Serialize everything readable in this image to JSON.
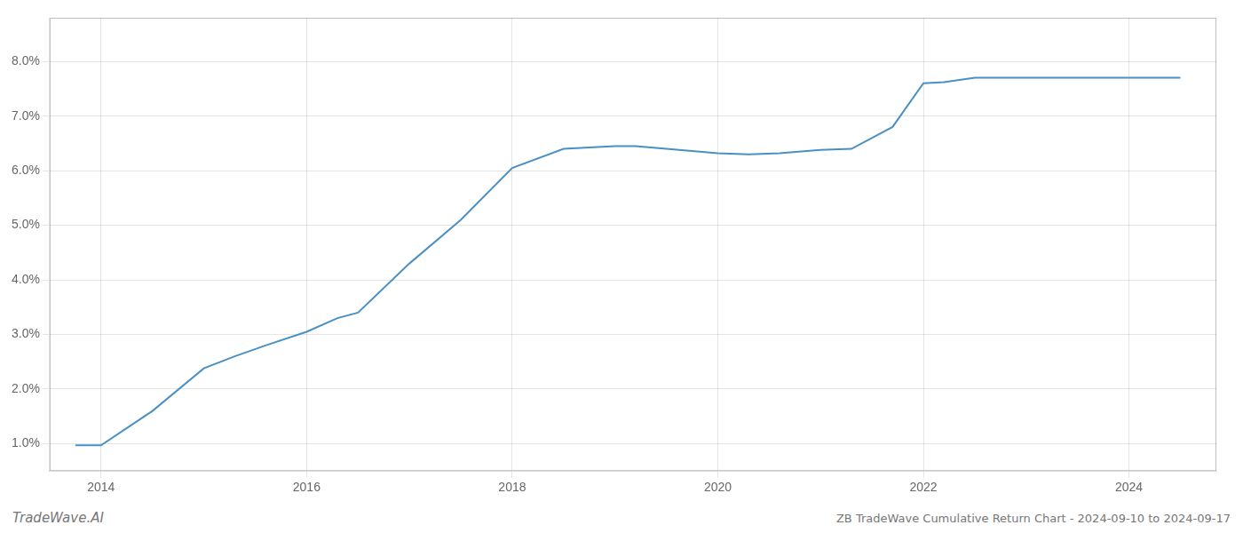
{
  "chart_data": {
    "type": "line",
    "x": [
      2013.75,
      2014.0,
      2014.5,
      2015.0,
      2015.3,
      2015.6,
      2016.0,
      2016.3,
      2016.5,
      2017.0,
      2017.5,
      2018.0,
      2018.5,
      2019.0,
      2019.2,
      2019.5,
      2019.8,
      2020.0,
      2020.3,
      2020.6,
      2021.0,
      2021.3,
      2021.7,
      2022.0,
      2022.2,
      2022.5,
      2023.0,
      2023.5,
      2024.0,
      2024.5
    ],
    "values": [
      0.0097,
      0.0097,
      0.016,
      0.0238,
      0.026,
      0.028,
      0.0305,
      0.033,
      0.034,
      0.043,
      0.051,
      0.0605,
      0.064,
      0.0645,
      0.0645,
      0.064,
      0.0635,
      0.0632,
      0.063,
      0.0632,
      0.0638,
      0.064,
      0.068,
      0.076,
      0.0762,
      0.077,
      0.077,
      0.077,
      0.077,
      0.077
    ],
    "color": "#4a90c4",
    "xlim": [
      2013.5,
      2024.85
    ],
    "ylim": [
      0.005,
      0.088
    ],
    "xticks": [
      2014,
      2016,
      2018,
      2020,
      2022,
      2024
    ],
    "yticks": [
      {
        "value": 0.01,
        "label": "1.0%"
      },
      {
        "value": 0.02,
        "label": "2.0%"
      },
      {
        "value": 0.03,
        "label": "3.0%"
      },
      {
        "value": 0.04,
        "label": "4.0%"
      },
      {
        "value": 0.05,
        "label": "5.0%"
      },
      {
        "value": 0.06,
        "label": "6.0%"
      },
      {
        "value": 0.07,
        "label": "7.0%"
      },
      {
        "value": 0.08,
        "label": "8.0%"
      }
    ],
    "grid": true,
    "annotations": [
      "TradeWave.AI",
      "ZB TradeWave Cumulative Return Chart - 2024-09-10 to 2024-09-17"
    ]
  }
}
